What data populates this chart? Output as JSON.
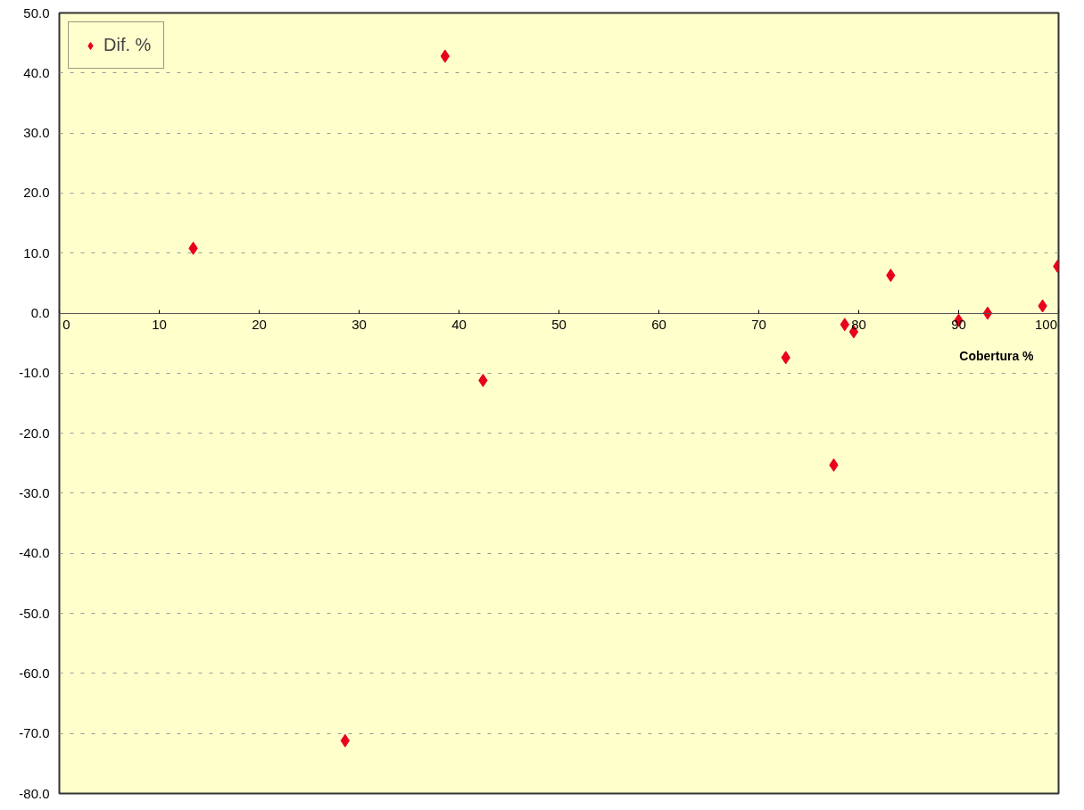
{
  "chart_data": {
    "type": "scatter",
    "xlabel": "Cobertura %",
    "x": [
      13.4,
      38.6,
      28.6,
      42.4,
      72.7,
      77.5,
      78.6,
      79.5,
      83.2,
      90.0,
      92.9,
      98.4,
      99.9
    ],
    "series": [
      {
        "name": "Dif. %",
        "color": "#e8001c",
        "values": [
          10.8,
          42.8,
          -71.2,
          -11.2,
          -7.4,
          -25.3,
          -1.9,
          -3.1,
          6.3,
          -1.2,
          0.0,
          1.2,
          7.8
        ]
      }
    ],
    "xlim": [
      0,
      100
    ],
    "xticks": [
      0,
      10,
      20,
      30,
      40,
      50,
      60,
      70,
      80,
      90,
      100
    ],
    "ylim": [
      -80,
      50
    ],
    "yticks": [
      {
        "value": -80,
        "label": "-80.0"
      },
      {
        "value": -70,
        "label": "-70.0"
      },
      {
        "value": -60,
        "label": "-60.0"
      },
      {
        "value": -50,
        "label": "-50.0"
      },
      {
        "value": -40,
        "label": "-40.0"
      },
      {
        "value": -30,
        "label": "-30.0"
      },
      {
        "value": -20,
        "label": "-20.0"
      },
      {
        "value": -10,
        "label": "-10.0"
      },
      {
        "value": 0,
        "label": "0.0"
      },
      {
        "value": 10,
        "label": "10.0"
      },
      {
        "value": 20,
        "label": "20.0"
      },
      {
        "value": 30,
        "label": "30.0"
      },
      {
        "value": 40,
        "label": "40.0"
      },
      {
        "value": 50,
        "label": "50.0"
      }
    ],
    "grid": "y",
    "legend": "top left",
    "marker": "diamond"
  }
}
